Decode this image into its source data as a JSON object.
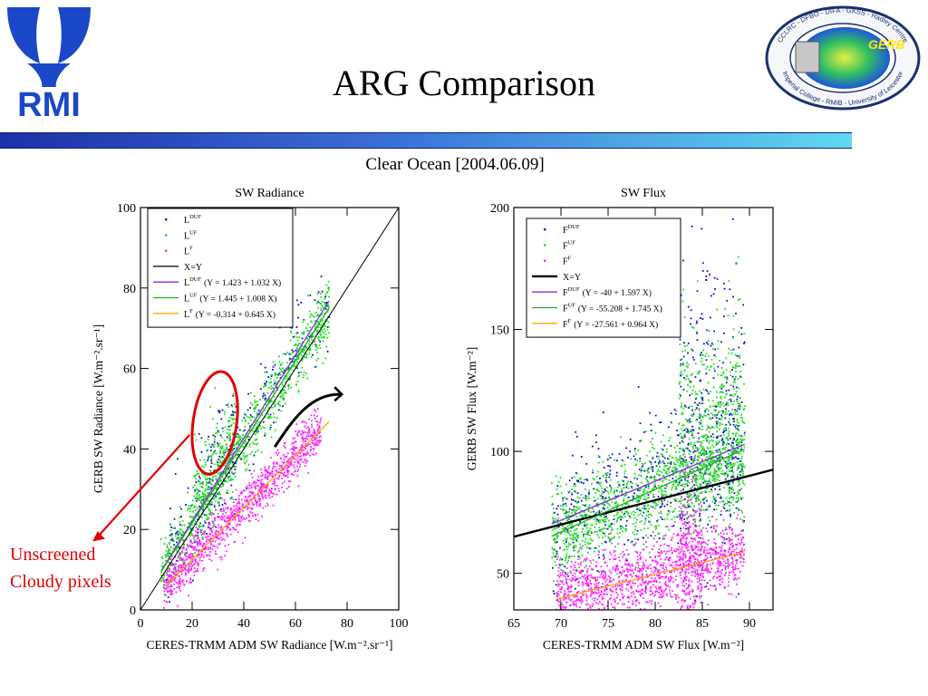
{
  "slide": {
    "title": "ARG Comparison",
    "left_logo_text": "RMI",
    "right_logo_ring_text": "CCLRC - DFBO - DIFA - GKSS - Hadley Centre",
    "right_logo_ring_text_bottom": "Imperial College - RMIB - University of Leicester",
    "right_logo_center_text": "GERB",
    "annotation_line1": "Unscreened",
    "annotation_line2": "Cloudy pixels",
    "colors": {
      "bar_start": "#1d2fa8",
      "bar_end": "#5fd8f0",
      "annotation": "#e00000"
    }
  },
  "figure": {
    "suptitle": "Clear Ocean [2004.06.09]"
  },
  "chart_data": [
    {
      "type": "scatter",
      "title": "SW Radiance",
      "xlabel": "CERES-TRMM ADM SW Radiance [W.m⁻².sr⁻¹]",
      "ylabel": "GERB SW Radiance [W.m⁻².sr⁻¹]",
      "xlim": [
        0,
        100
      ],
      "ylim": [
        0,
        100
      ],
      "xticks": [
        "0",
        "20",
        "40",
        "60",
        "80",
        "100"
      ],
      "yticks": [
        "0",
        "20",
        "40",
        "60",
        "80",
        "100"
      ],
      "legend_position": "top-left",
      "legend": [
        {
          "marker": "dot",
          "color": "#1010cc",
          "label": "L",
          "sup": "DUF",
          "eq": ""
        },
        {
          "marker": "dot",
          "color": "#22dd22",
          "label": "L",
          "sup": "UF",
          "eq": ""
        },
        {
          "marker": "dot",
          "color": "#ff22ff",
          "label": "L",
          "sup": "F",
          "eq": ""
        },
        {
          "marker": "line",
          "color": "#000000",
          "label": "X=Y",
          "sup": "",
          "eq": ""
        },
        {
          "marker": "line",
          "color": "#8a2be2",
          "label": "L",
          "sup": "DUF",
          "eq": "(Y = 1.423 + 1.032 X)"
        },
        {
          "marker": "line",
          "color": "#22aa22",
          "label": "L",
          "sup": "UF",
          "eq": "(Y = 1.445 + 1.008 X)"
        },
        {
          "marker": "line",
          "color": "#ffa500",
          "label": "L",
          "sup": "F",
          "eq": "(Y = -0.314 + 0.645 X)"
        }
      ],
      "fit_lines": [
        {
          "name": "X=Y",
          "color": "#000000",
          "intercept": 0,
          "slope": 1,
          "x_range": [
            0,
            100
          ]
        },
        {
          "name": "LDUF",
          "color": "#8a2be2",
          "intercept": 1.423,
          "slope": 1.032,
          "x_range": [
            8,
            73
          ]
        },
        {
          "name": "LUF",
          "color": "#22aa22",
          "intercept": 1.445,
          "slope": 1.008,
          "x_range": [
            8,
            73
          ]
        },
        {
          "name": "LF",
          "color": "#ffa500",
          "intercept": -0.314,
          "slope": 0.645,
          "x_range": [
            10,
            73
          ]
        }
      ],
      "scatter_series": [
        {
          "name": "LDUF",
          "color": "#1010cc",
          "x_range": [
            10,
            73
          ],
          "clouds": [
            {
              "x": [
                10,
                73
              ],
              "intercept": 1.423,
              "slope": 1.032,
              "spread": 6,
              "n": 240
            },
            {
              "x": [
                22,
                38
              ],
              "intercept": 12,
              "slope": 0.9,
              "spread": 6,
              "n": 80
            }
          ]
        },
        {
          "name": "LUF",
          "color": "#22dd22",
          "x_range": [
            8,
            73
          ],
          "clouds": [
            {
              "x": [
                8,
                73
              ],
              "intercept": 1.445,
              "slope": 1.008,
              "spread": 4,
              "n": 900
            },
            {
              "x": [
                20,
                38
              ],
              "intercept": 9,
              "slope": 0.95,
              "spread": 5,
              "n": 200
            }
          ]
        },
        {
          "name": "LF",
          "color": "#ff22ff",
          "x_range": [
            9,
            73
          ],
          "clouds": [
            {
              "x": [
                9,
                70
              ],
              "intercept": -0.314,
              "slope": 0.645,
              "spread": 2.8,
              "n": 1100
            }
          ]
        }
      ]
    },
    {
      "type": "scatter",
      "title": "SW Flux",
      "xlabel": "CERES-TRMM ADM SW Flux [W.m⁻²]",
      "ylabel": "GERB SW Flux [W.m⁻²]",
      "xlim": [
        65,
        92.5
      ],
      "ylim": [
        35,
        200
      ],
      "xticks": [
        "65",
        "70",
        "75",
        "80",
        "85",
        "90"
      ],
      "yticks": [
        "50",
        "100",
        "150",
        "200"
      ],
      "legend_position": "top-left",
      "legend": [
        {
          "marker": "dot",
          "color": "#1010cc",
          "label": "F",
          "sup": "DUF",
          "eq": ""
        },
        {
          "marker": "dot",
          "color": "#22dd22",
          "label": "F",
          "sup": "UF",
          "eq": ""
        },
        {
          "marker": "dot",
          "color": "#ff22ff",
          "label": "F",
          "sup": "F",
          "eq": ""
        },
        {
          "marker": "line",
          "color": "#000000",
          "label": "X=Y",
          "sup": "",
          "eq": ""
        },
        {
          "marker": "line",
          "color": "#8a2be2",
          "label": "F",
          "sup": "DUF",
          "eq": "(Y = -40 + 1.597 X)"
        },
        {
          "marker": "line",
          "color": "#22aa22",
          "label": "F",
          "sup": "UF",
          "eq": "(Y = -55.208 + 1.745 X)"
        },
        {
          "marker": "line",
          "color": "#ffa500",
          "label": "F",
          "sup": "F",
          "eq": "(Y = -27.561 + 0.964 X)"
        }
      ],
      "fit_lines": [
        {
          "name": "X=Y",
          "color": "#000000",
          "intercept": 0,
          "slope": 1,
          "x_range": [
            65,
            92.5
          ]
        },
        {
          "name": "FDUF",
          "color": "#8a2be2",
          "intercept": -40,
          "slope": 1.597,
          "x_range": [
            69,
            89.5
          ]
        },
        {
          "name": "FUF",
          "color": "#22aa22",
          "intercept": -55.208,
          "slope": 1.745,
          "x_range": [
            69,
            89.5
          ]
        },
        {
          "name": "FF",
          "color": "#ffa500",
          "intercept": -27.561,
          "slope": 0.964,
          "x_range": [
            69.5,
            89.5
          ]
        }
      ],
      "scatter_series": [
        {
          "name": "FDUF",
          "color": "#1010cc",
          "x_range": [
            69,
            89.5
          ],
          "clouds": [
            {
              "x": [
                69,
                89.5
              ],
              "intercept": -40,
              "slope": 1.597,
              "spread": 14,
              "n": 500
            },
            {
              "x": [
                82.5,
                89.5
              ],
              "intercept": 40,
              "slope": 0.9,
              "spread": 35,
              "n": 260
            }
          ]
        },
        {
          "name": "FUF",
          "color": "#22dd22",
          "x_range": [
            69,
            89.5
          ],
          "clouds": [
            {
              "x": [
                69,
                89.5
              ],
              "intercept": -55.208,
              "slope": 1.745,
              "spread": 10,
              "n": 1300
            },
            {
              "x": [
                82.5,
                89.5
              ],
              "intercept": 30,
              "slope": 0.9,
              "spread": 25,
              "n": 500
            }
          ]
        },
        {
          "name": "FF",
          "color": "#ff22ff",
          "x_range": [
            69.5,
            89.5
          ],
          "clouds": [
            {
              "x": [
                69.5,
                89.5
              ],
              "intercept": -27.561,
              "slope": 0.964,
              "spread": 7,
              "n": 1300
            },
            {
              "x": [
                82.5,
                85
              ],
              "intercept": -10,
              "slope": 0.8,
              "spread": 18,
              "n": 250
            }
          ]
        }
      ]
    }
  ]
}
